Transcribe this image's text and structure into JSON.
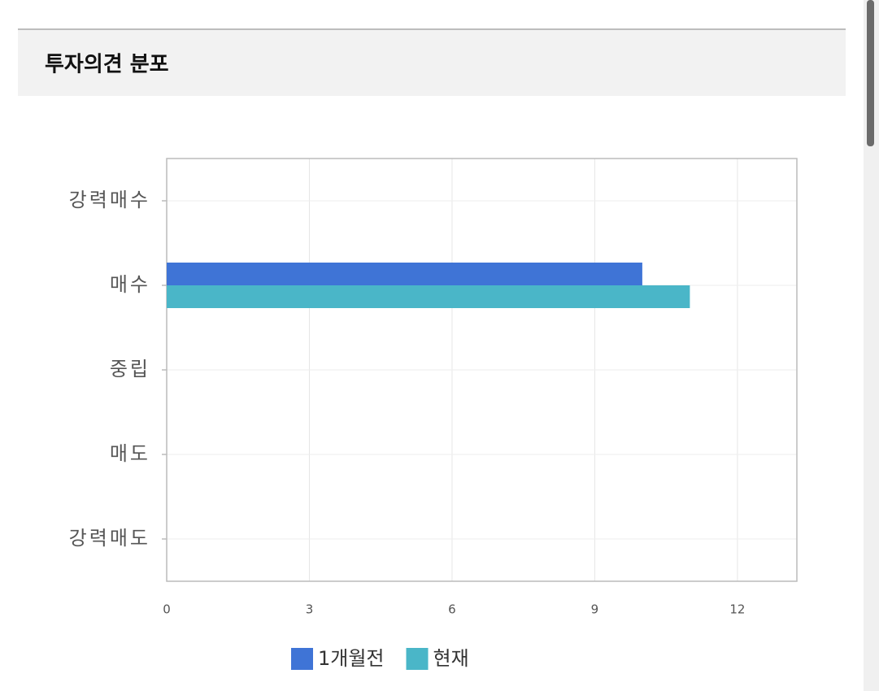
{
  "header": {
    "title": "투자의견 분포"
  },
  "chart_data": {
    "type": "hbar",
    "categories": [
      "강력매수",
      "매수",
      "중립",
      "매도",
      "강력매도"
    ],
    "series": [
      {
        "name": "1개월전",
        "color": "#3f74d6",
        "values": [
          0,
          10,
          0,
          0,
          0
        ]
      },
      {
        "name": "현재",
        "color": "#4ab6c8",
        "values": [
          0,
          11,
          0,
          0,
          0
        ]
      }
    ],
    "xlim": [
      0,
      13.25
    ],
    "xticks": [
      0,
      3,
      6,
      9,
      12
    ],
    "grid": true,
    "legend": "bottom"
  }
}
